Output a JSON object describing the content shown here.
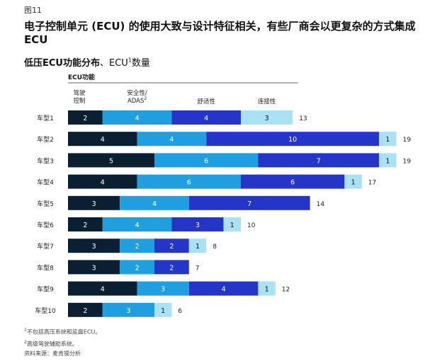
{
  "figure_label": "图11",
  "title": "电子控制单元 (ECU) 的使用大致与设计特征相关，有些厂商会以更复杂的方式集成ECU",
  "subtitle_bold": "低压ECU功能分布",
  "subtitle_rest": "、ECU",
  "subtitle_sup": "1",
  "subtitle_tail": "数量",
  "notes": [
    {
      "sup": "1",
      "text": "不包括高压系统和底盘ECU。"
    },
    {
      "sup": "2",
      "text": "高级驾驶辅助系统。"
    },
    {
      "sup": "",
      "text": "资料来源：麦肯锡分析"
    }
  ],
  "chart_data": {
    "type": "bar",
    "orientation": "horizontal",
    "stacked": true,
    "title": "",
    "axis_label": "ECU功能",
    "categories": [
      "车型1",
      "车型2",
      "车型3",
      "车型4",
      "车型5",
      "车型6",
      "车型7",
      "车型8",
      "车型9",
      "车型10"
    ],
    "series": [
      {
        "name": "驾驶控制",
        "color": "#0b1f33",
        "values": [
          2,
          4,
          5,
          4,
          3,
          2,
          3,
          3,
          4,
          2
        ]
      },
      {
        "name": "安全性/ADAS",
        "name_sup": "2",
        "color": "#1f9fe0",
        "values": [
          4,
          4,
          6,
          6,
          4,
          4,
          2,
          2,
          3,
          3
        ]
      },
      {
        "name": "舒适性",
        "color": "#2635c9",
        "values": [
          4,
          10,
          7,
          6,
          7,
          3,
          2,
          2,
          4,
          0
        ]
      },
      {
        "name": "连接性",
        "color": "#a8e2f4",
        "values": [
          3,
          1,
          1,
          1,
          0,
          1,
          1,
          0,
          1,
          1
        ]
      }
    ],
    "totals": [
      13,
      19,
      19,
      17,
      14,
      10,
      8,
      7,
      12,
      6
    ],
    "legend_placement": "top",
    "grid": false,
    "xlim": [
      0,
      20
    ]
  }
}
